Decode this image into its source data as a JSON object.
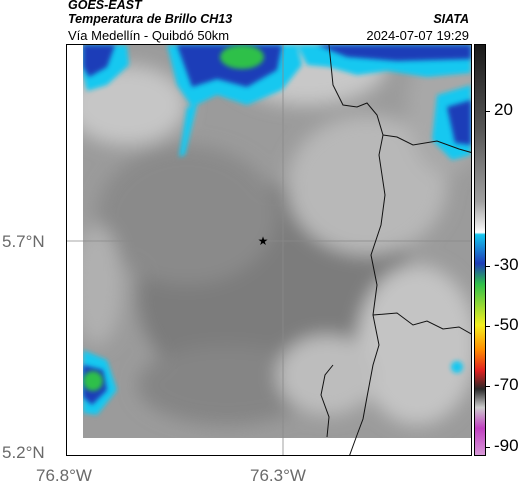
{
  "header": {
    "satellite": "GOES-EAST",
    "product": "Temperatura de Brillo CH13",
    "region": "Vía Medellín - Quibdó 50km",
    "agency": "SIATA",
    "datetime": "2024-07-07 19:29"
  },
  "map": {
    "lat_ticks": [
      "5.7°N",
      "5.2°N"
    ],
    "lon_ticks": [
      "76.8°W",
      "76.3°W"
    ],
    "marker_icon": "star-icon"
  },
  "colorbar": {
    "ticks": [
      "20",
      "-30",
      "-50",
      "-70",
      "-90"
    ],
    "colors": {
      "warm_dark": "#333333",
      "neutral_gray": "#9a9a9a",
      "light": "#f2f2f2",
      "cyan": "#16c8f0",
      "blue": "#1f3db8",
      "green": "#2fc04a",
      "yellow": "#f4f020",
      "red": "#e02020",
      "magenta": "#c040c0"
    }
  }
}
